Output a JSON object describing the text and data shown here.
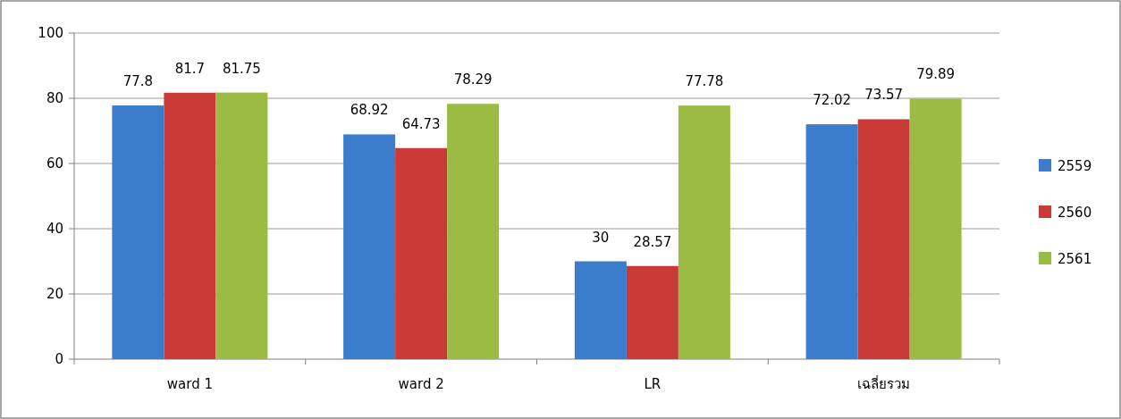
{
  "chart_data": {
    "type": "bar",
    "categories": [
      "ward 1",
      "ward 2",
      "LR",
      "เฉลี่ยรวม"
    ],
    "series": [
      {
        "name": "2559",
        "color": "#3b7dcc",
        "values": [
          77.8,
          68.92,
          30,
          72.02
        ]
      },
      {
        "name": "2560",
        "color": "#c93b37",
        "values": [
          81.7,
          64.73,
          28.57,
          73.57
        ]
      },
      {
        "name": "2561",
        "color": "#9bbb45",
        "values": [
          81.75,
          78.29,
          77.78,
          79.89
        ]
      }
    ],
    "ylim": [
      0,
      100
    ],
    "yticks": [
      0,
      20,
      40,
      60,
      80,
      100
    ],
    "grid": "y",
    "legend": "right",
    "data_labels": true
  }
}
